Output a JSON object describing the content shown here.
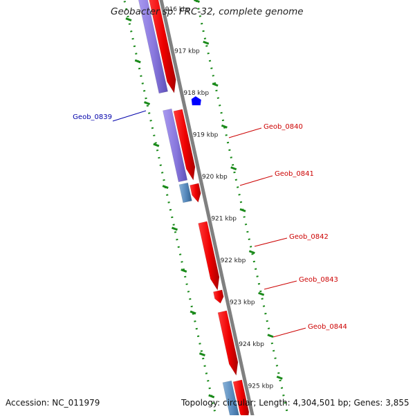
{
  "title": "Geobacter sp. FRC-32, complete genome",
  "accession": "Accession: NC_011979",
  "summary": "Topology: circular; Length: 4,304,501 bp; Genes: 3,855",
  "colors": {
    "backbone": "#808080",
    "forward_gene": "#ff0000",
    "reverse_gene": "#0000ff",
    "cds_forward": "#8877dd",
    "cds_other": "#5588bb",
    "tick": "#1a8a1a",
    "label_forward": "#cc0000",
    "label_reverse": "#0000aa"
  },
  "ticks": [
    {
      "label": "916 kbp",
      "kbp": 916
    },
    {
      "label": "917 kbp",
      "kbp": 917
    },
    {
      "label": "918 kbp",
      "kbp": 918
    },
    {
      "label": "919 kbp",
      "kbp": 919
    },
    {
      "label": "920 kbp",
      "kbp": 920
    },
    {
      "label": "921 kbp",
      "kbp": 921
    },
    {
      "label": "922 kbp",
      "kbp": 922
    },
    {
      "label": "923 kbp",
      "kbp": 923
    },
    {
      "label": "924 kbp",
      "kbp": 924
    },
    {
      "label": "925 kbp",
      "kbp": 925
    }
  ],
  "genes": [
    {
      "label": "Geob_0839",
      "strand": "reverse"
    },
    {
      "label": "Geob_0840",
      "strand": "forward"
    },
    {
      "label": "Geob_0841",
      "strand": "forward"
    },
    {
      "label": "Geob_0842",
      "strand": "forward"
    },
    {
      "label": "Geob_0843",
      "strand": "forward"
    },
    {
      "label": "Geob_0844",
      "strand": "forward"
    }
  ]
}
